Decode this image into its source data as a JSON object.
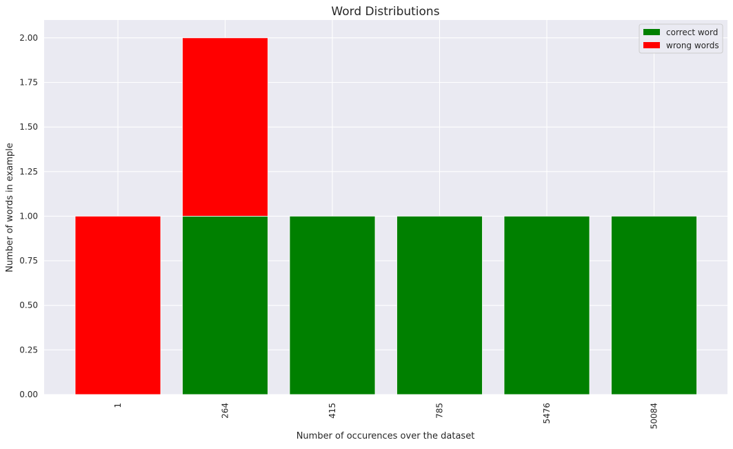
{
  "chart_data": {
    "type": "bar",
    "stacked": true,
    "title": "Word Distributions",
    "xlabel": "Number of occurences over the dataset",
    "ylabel": "Number of words in example",
    "categories": [
      "1",
      "264",
      "415",
      "785",
      "5476",
      "50084"
    ],
    "series": [
      {
        "name": "correct word",
        "color": "#008000",
        "values": [
          0,
          1,
          1,
          1,
          1,
          1
        ]
      },
      {
        "name": "wrong words",
        "color": "#ff0000",
        "values": [
          1,
          1,
          0,
          0,
          0,
          0
        ]
      }
    ],
    "ylim": [
      0,
      2.1
    ],
    "yticks": [
      "0.00",
      "0.25",
      "0.50",
      "0.75",
      "1.00",
      "1.25",
      "1.50",
      "1.75",
      "2.00"
    ],
    "grid": true,
    "legend_position": "top-right",
    "style": {
      "background": "#eaeaf2",
      "grid_color": "#ffffff"
    }
  }
}
